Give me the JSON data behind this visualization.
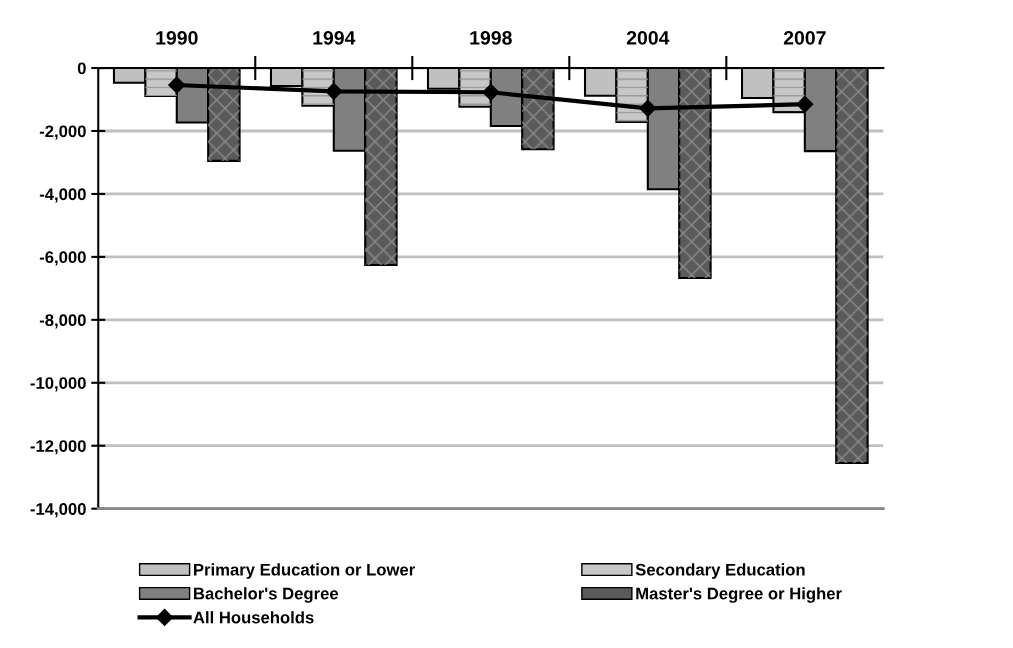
{
  "chart_data": {
    "type": "bar",
    "categories": [
      "1990",
      "1994",
      "1998",
      "2004",
      "2007"
    ],
    "series": [
      {
        "name": "Primary Education or Lower",
        "color": "#c0c0c0",
        "values": [
          -470,
          -570,
          -660,
          -880,
          -950
        ]
      },
      {
        "name": "Secondary Education",
        "color": "#c8c8c8",
        "values": [
          -890,
          -1200,
          -1230,
          -1710,
          -1400
        ]
      },
      {
        "name": "Bachelor's Degree",
        "color": "#808080",
        "values": [
          -1730,
          -2630,
          -1840,
          -3850,
          -2640
        ]
      },
      {
        "name": "Master's Degree or Higher",
        "color": "#5a5a5a",
        "values": [
          -2950,
          -6260,
          -2580,
          -6670,
          -12550
        ]
      },
      {
        "name": "All Households",
        "type": "line",
        "color": "#000000",
        "values": [
          -540,
          -740,
          -770,
          -1280,
          -1150
        ],
        "marker": "diamond"
      }
    ],
    "ylim": [
      -14000,
      0
    ],
    "yticks": [
      {
        "value": -14000,
        "label": "-14,000"
      },
      {
        "value": -12000,
        "label": "-12,000"
      },
      {
        "value": -10000,
        "label": "-10,000"
      },
      {
        "value": -8000,
        "label": "-8,000"
      },
      {
        "value": -6000,
        "label": "-6,000"
      },
      {
        "value": -4000,
        "label": "-4,000"
      },
      {
        "value": -2000,
        "label": "-2,000"
      },
      0
    ],
    "grid": "y",
    "legend": "bottom"
  }
}
